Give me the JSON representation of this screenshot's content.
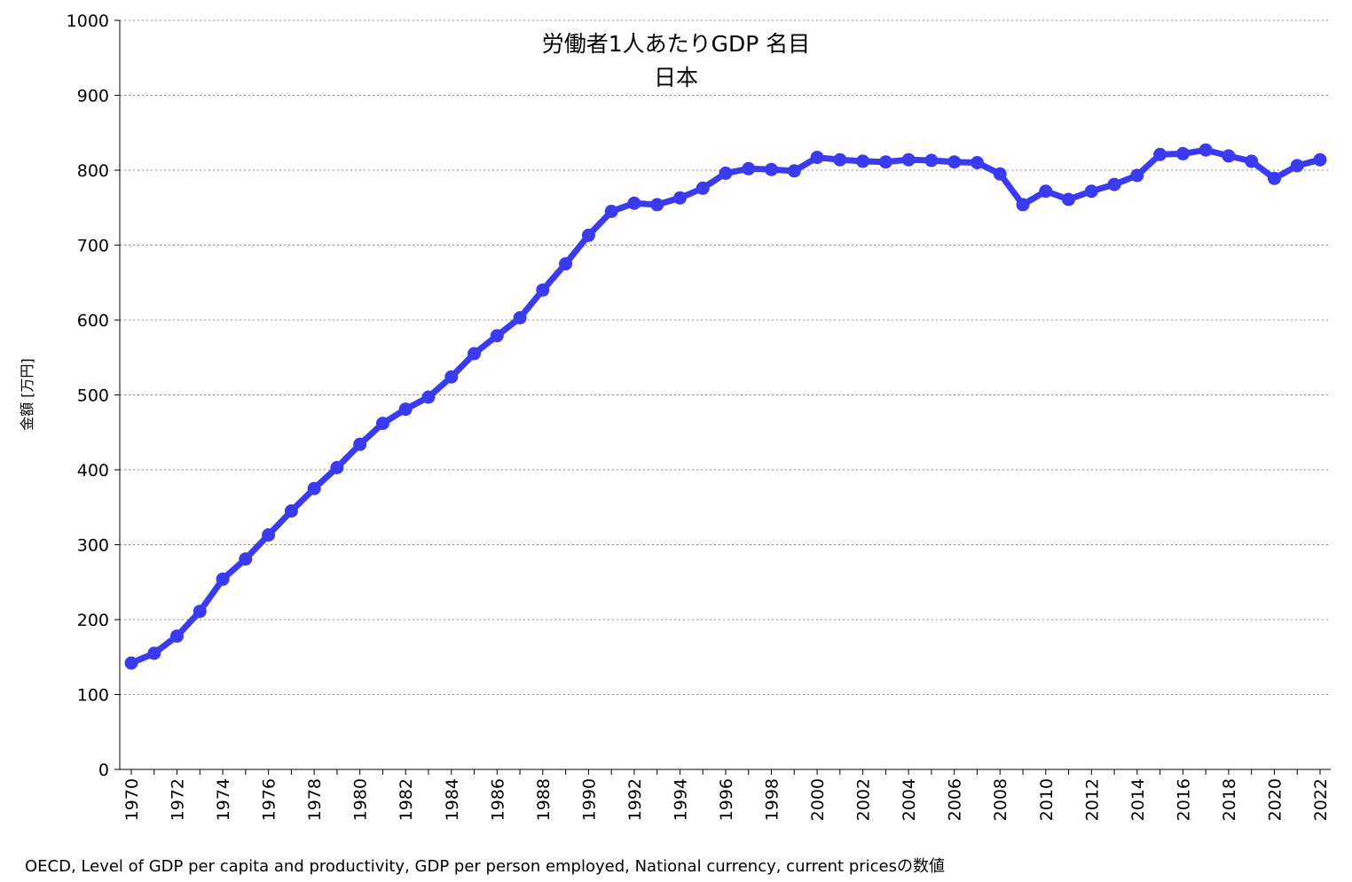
{
  "chart_data": {
    "type": "line",
    "title": "労働者1人あたりGDP 名目",
    "subtitle": "日本",
    "ylabel": "金額 [万円]",
    "xlabel": "",
    "source_note": "OECD, Level of GDP per capita and productivity, GDP per person employed, National currency, current pricesの数値",
    "ylim": [
      0,
      1000
    ],
    "yticks": [
      "0",
      "100",
      "200",
      "300",
      "400",
      "500",
      "600",
      "700",
      "800",
      "900",
      "1000"
    ],
    "xticks": [
      "1970",
      "1972",
      "1974",
      "1976",
      "1978",
      "1980",
      "1982",
      "1984",
      "1986",
      "1988",
      "1990",
      "1992",
      "1994",
      "1996",
      "1998",
      "2000",
      "2002",
      "2004",
      "2006",
      "2008",
      "2010",
      "2012",
      "2014",
      "2016",
      "2018",
      "2020",
      "2022"
    ],
    "grid": "horizontal-dotted",
    "line_color": "#3a3af0",
    "series": [
      {
        "x": [
          1970,
          1971,
          1972,
          1973,
          1974,
          1975,
          1976,
          1977,
          1978,
          1979,
          1980,
          1981,
          1982,
          1983,
          1984,
          1985,
          1986,
          1987,
          1988,
          1989,
          1990,
          1991,
          1992,
          1993,
          1994,
          1995,
          1996,
          1997,
          1998,
          1999,
          2000,
          2001,
          2002,
          2003,
          2004,
          2005,
          2006,
          2007,
          2008,
          2009,
          2010,
          2011,
          2012,
          2013,
          2014,
          2015,
          2016,
          2017,
          2018,
          2019,
          2020,
          2021,
          2022
        ],
        "values": [
          142,
          155,
          178,
          211,
          254,
          281,
          313,
          345,
          375,
          403,
          434,
          462,
          481,
          497,
          524,
          555,
          579,
          603,
          640,
          675,
          713,
          745,
          756,
          754,
          763,
          776,
          796,
          802,
          801,
          799,
          817,
          814,
          812,
          811,
          814,
          813,
          811,
          810,
          795,
          754,
          772,
          761,
          772,
          781,
          793,
          821,
          822,
          827,
          819,
          812,
          789,
          806,
          814
        ]
      }
    ]
  }
}
